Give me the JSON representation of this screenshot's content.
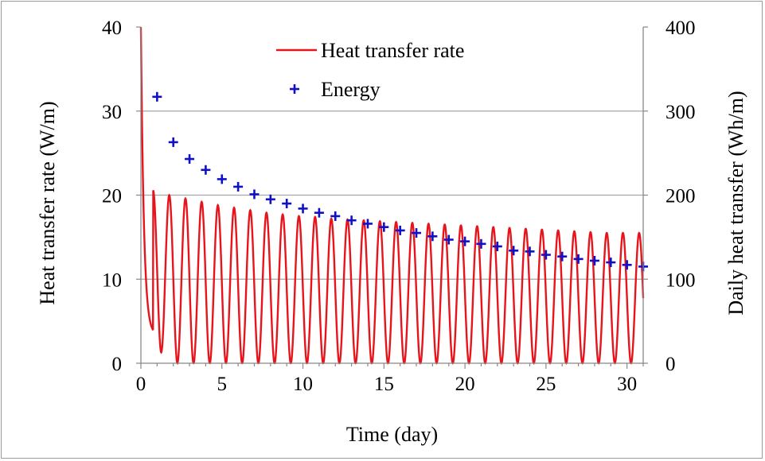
{
  "chart_data": {
    "type": "line",
    "xlabel": "Time (day)",
    "ylabel_left": "Heat transfer rate (W/m)",
    "ylabel_right": "Daily heat transfer (Wh/m)",
    "xlim": [
      0,
      31
    ],
    "ylim_left": [
      0,
      40
    ],
    "ylim_right": [
      0,
      400
    ],
    "x_ticks": [
      "0",
      "5",
      "10",
      "15",
      "20",
      "25",
      "30"
    ],
    "y_ticks_left": [
      "0",
      "10",
      "20",
      "30",
      "40"
    ],
    "y_ticks_right": [
      "0",
      "100",
      "200",
      "300",
      "400"
    ],
    "grid": "horizontal",
    "legend_position": "top-center",
    "colors": {
      "rate": "#e8141c",
      "energy": "#1010c8",
      "left_axis_title": "#e8141c",
      "right_axis_title": "#1010c8",
      "grid": "#a6a6a6"
    },
    "series": [
      {
        "name": "Heat transfer rate",
        "axis": "left",
        "type": "line",
        "initial_peak": 40,
        "cycle_peaks": [
          20.6,
          20.0,
          19.6,
          19.2,
          18.8,
          18.5,
          18.2,
          17.9,
          17.7,
          17.5,
          17.4,
          17.2,
          17.1,
          17.0,
          16.9,
          16.8,
          16.7,
          16.6,
          16.5,
          16.4,
          16.3,
          16.2,
          16.1,
          16.0,
          15.9,
          15.8,
          15.7,
          15.6,
          15.5,
          15.5
        ],
        "cycle_minima": [
          3.3,
          1.3,
          0,
          0,
          0,
          0,
          0,
          0,
          0,
          0,
          0,
          0,
          0,
          0,
          0,
          0,
          0,
          0,
          0,
          0,
          0,
          0,
          0,
          0,
          0,
          0,
          0,
          0,
          0,
          0,
          0
        ]
      },
      {
        "name": "Energy",
        "axis": "right",
        "type": "scatter",
        "marker": "+",
        "x": [
          1,
          2,
          3,
          4,
          5,
          6,
          7,
          8,
          9,
          10,
          11,
          12,
          13,
          14,
          15,
          16,
          17,
          18,
          19,
          20,
          21,
          22,
          23,
          24,
          25,
          26,
          27,
          28,
          29,
          30,
          31
        ],
        "y": [
          317,
          263,
          243,
          230,
          219,
          210,
          201,
          195,
          190,
          184,
          179,
          175,
          170,
          166,
          162,
          158,
          155,
          151,
          147,
          145,
          142,
          139,
          134,
          133,
          129,
          127,
          124,
          122,
          120,
          117,
          115
        ]
      }
    ]
  }
}
